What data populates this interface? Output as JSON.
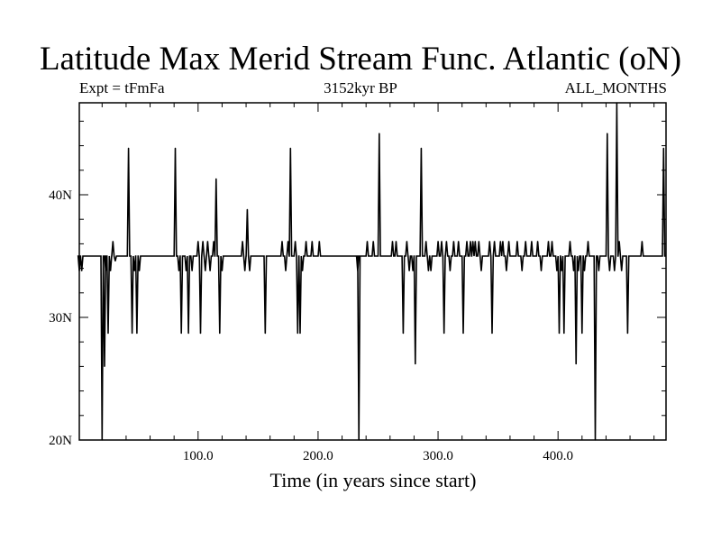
{
  "header": {
    "title": "Latitude Max Merid Stream Func. Atlantic (oN)",
    "left_label": "Expt = tFmFa",
    "center_label": "3152kyr BP",
    "right_label": "ALL_MONTHS"
  },
  "chart_data": {
    "type": "line",
    "title": "Latitude Max Merid Stream Func. Atlantic (oN)",
    "xlabel": "Time (in years since start)",
    "ylabel": "",
    "xlim": [
      1,
      490
    ],
    "ylim": [
      20,
      47.5
    ],
    "xticks": [
      100,
      200,
      300,
      400
    ],
    "xtick_labels": [
      "100.0",
      "200.0",
      "300.0",
      "400.0"
    ],
    "yticks": [
      20,
      30,
      40
    ],
    "ytick_labels": [
      "20N",
      "30N",
      "40N"
    ],
    "baseline": 35,
    "line_color": "#000000",
    "spikes": [
      [
        1,
        33.8
      ],
      [
        3,
        33.8
      ],
      [
        20,
        20
      ],
      [
        22,
        26
      ],
      [
        23,
        33.8
      ],
      [
        25,
        28.7
      ],
      [
        27,
        33.8
      ],
      [
        29,
        36.2
      ],
      [
        31,
        34.6
      ],
      [
        42,
        43.8
      ],
      [
        45,
        28.7
      ],
      [
        47,
        33.8
      ],
      [
        49,
        28.7
      ],
      [
        51,
        33.8
      ],
      [
        81,
        43.8
      ],
      [
        84,
        33.8
      ],
      [
        86,
        28.7
      ],
      [
        90,
        33.8
      ],
      [
        92,
        28.7
      ],
      [
        95,
        33.8
      ],
      [
        100,
        36.2
      ],
      [
        102,
        28.7
      ],
      [
        104,
        36.2
      ],
      [
        106,
        33.8
      ],
      [
        108,
        36.2
      ],
      [
        110,
        33.8
      ],
      [
        113,
        36.2
      ],
      [
        115,
        41.3
      ],
      [
        118,
        28.7
      ],
      [
        120,
        33.8
      ],
      [
        137,
        36.2
      ],
      [
        139,
        33.8
      ],
      [
        141,
        38.8
      ],
      [
        143,
        33.8
      ],
      [
        156,
        28.7
      ],
      [
        170,
        36.2
      ],
      [
        173,
        33.8
      ],
      [
        175,
        36.2
      ],
      [
        177,
        43.8
      ],
      [
        181,
        36.2
      ],
      [
        183,
        28.7
      ],
      [
        185,
        28.7
      ],
      [
        187,
        33.8
      ],
      [
        190,
        36.2
      ],
      [
        195,
        36.2
      ],
      [
        201,
        36.2
      ],
      [
        233,
        33.8
      ],
      [
        234,
        20
      ],
      [
        241,
        36.2
      ],
      [
        246,
        36.2
      ],
      [
        251,
        45
      ],
      [
        262,
        36.2
      ],
      [
        265,
        36.2
      ],
      [
        271,
        28.7
      ],
      [
        274,
        36.2
      ],
      [
        276,
        33.8
      ],
      [
        279,
        33.8
      ],
      [
        281,
        26.2
      ],
      [
        286,
        43.8
      ],
      [
        290,
        36.2
      ],
      [
        292,
        33.8
      ],
      [
        294,
        33.8
      ],
      [
        300,
        36.2
      ],
      [
        303,
        36.2
      ],
      [
        305,
        28.7
      ],
      [
        307,
        36.2
      ],
      [
        310,
        33.8
      ],
      [
        313,
        36.2
      ],
      [
        317,
        36.2
      ],
      [
        321,
        28.7
      ],
      [
        324,
        36.2
      ],
      [
        327,
        36.2
      ],
      [
        329,
        36.2
      ],
      [
        331,
        36.2
      ],
      [
        334,
        36.2
      ],
      [
        336,
        33.8
      ],
      [
        343,
        36.2
      ],
      [
        345,
        28.7
      ],
      [
        347,
        36.2
      ],
      [
        352,
        36.2
      ],
      [
        354,
        36.2
      ],
      [
        357,
        33.8
      ],
      [
        359,
        36.2
      ],
      [
        366,
        36.2
      ],
      [
        370,
        33.8
      ],
      [
        373,
        36.2
      ],
      [
        378,
        36.2
      ],
      [
        383,
        36.2
      ],
      [
        386,
        33.8
      ],
      [
        392,
        36.2
      ],
      [
        395,
        36.2
      ],
      [
        399,
        33.8
      ],
      [
        401,
        28.7
      ],
      [
        403,
        33.8
      ],
      [
        405,
        28.7
      ],
      [
        410,
        36.2
      ],
      [
        413,
        33.8
      ],
      [
        415,
        26.2
      ],
      [
        417,
        33.8
      ],
      [
        420,
        28.7
      ],
      [
        422,
        33.8
      ],
      [
        425,
        36.2
      ],
      [
        431,
        20
      ],
      [
        434,
        33.8
      ],
      [
        441,
        45
      ],
      [
        443,
        33.8
      ],
      [
        447,
        33.8
      ],
      [
        449,
        47.5
      ],
      [
        451,
        36.2
      ],
      [
        453,
        33.8
      ],
      [
        458,
        28.7
      ],
      [
        470,
        36.2
      ],
      [
        488,
        43.8
      ]
    ]
  }
}
